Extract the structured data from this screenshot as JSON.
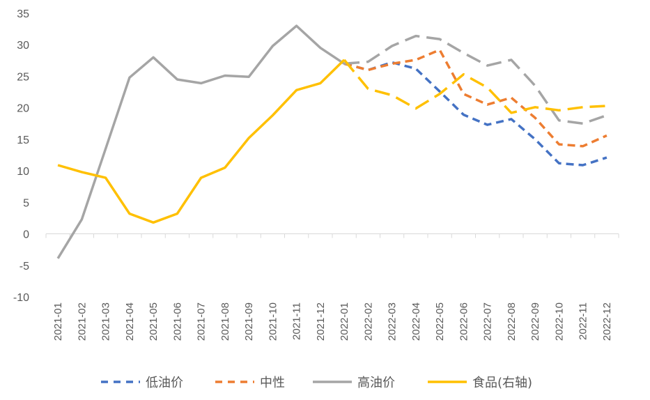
{
  "chart_data": {
    "type": "line",
    "title": "",
    "xlabel": "",
    "ylabel": "",
    "ylim": [
      -10,
      35
    ],
    "yticks": [
      -10,
      -5,
      0,
      5,
      10,
      15,
      20,
      25,
      30,
      35
    ],
    "grid": false,
    "legend_position": "bottom",
    "categories": [
      "2021-01",
      "2021-02",
      "2021-03",
      "2021-04",
      "2021-05",
      "2021-06",
      "2021-07",
      "2021-08",
      "2021-09",
      "2021-10",
      "2021-11",
      "2021-12",
      "2022-01",
      "2022-02",
      "2022-03",
      "2022-04",
      "2022-05",
      "2022-06",
      "2022-07",
      "2022-08",
      "2022-09",
      "2022-10",
      "2022-11",
      "2022-12"
    ],
    "series": [
      {
        "name": "低油价",
        "color": "#4472C4",
        "dash": true,
        "values": [
          null,
          null,
          null,
          null,
          null,
          null,
          null,
          null,
          null,
          null,
          null,
          null,
          27.0,
          26.0,
          27.2,
          26.2,
          22.6,
          18.9,
          17.3,
          18.2,
          15.0,
          11.2,
          10.9,
          12.1
        ]
      },
      {
        "name": "中性",
        "color": "#ED7D31",
        "dash": true,
        "values": [
          null,
          null,
          null,
          null,
          null,
          null,
          null,
          null,
          null,
          null,
          null,
          null,
          27.0,
          26.0,
          27.0,
          27.6,
          29.2,
          22.2,
          20.5,
          21.6,
          18.4,
          14.2,
          13.9,
          15.6
        ]
      },
      {
        "name": "高油价",
        "color": "#A5A5A5",
        "dash": false,
        "dash_from": "2022-01",
        "values": [
          -3.9,
          2.3,
          13.5,
          24.8,
          28.0,
          24.5,
          23.9,
          25.1,
          24.9,
          29.8,
          33.0,
          29.5,
          27.0,
          27.3,
          29.8,
          31.4,
          30.9,
          28.7,
          26.7,
          27.6,
          23.5,
          18.0,
          17.5,
          18.8
        ]
      },
      {
        "name": "食品(右轴)",
        "color": "#FFC000",
        "dash": false,
        "dash_from": "2022-01",
        "values": [
          10.9,
          9.8,
          8.9,
          3.2,
          1.8,
          3.2,
          8.9,
          10.5,
          15.2,
          18.8,
          22.8,
          23.9,
          27.6,
          23.0,
          22.0,
          19.9,
          22.2,
          25.3,
          23.2,
          19.2,
          20.1,
          19.6,
          20.1,
          20.3
        ]
      }
    ]
  }
}
